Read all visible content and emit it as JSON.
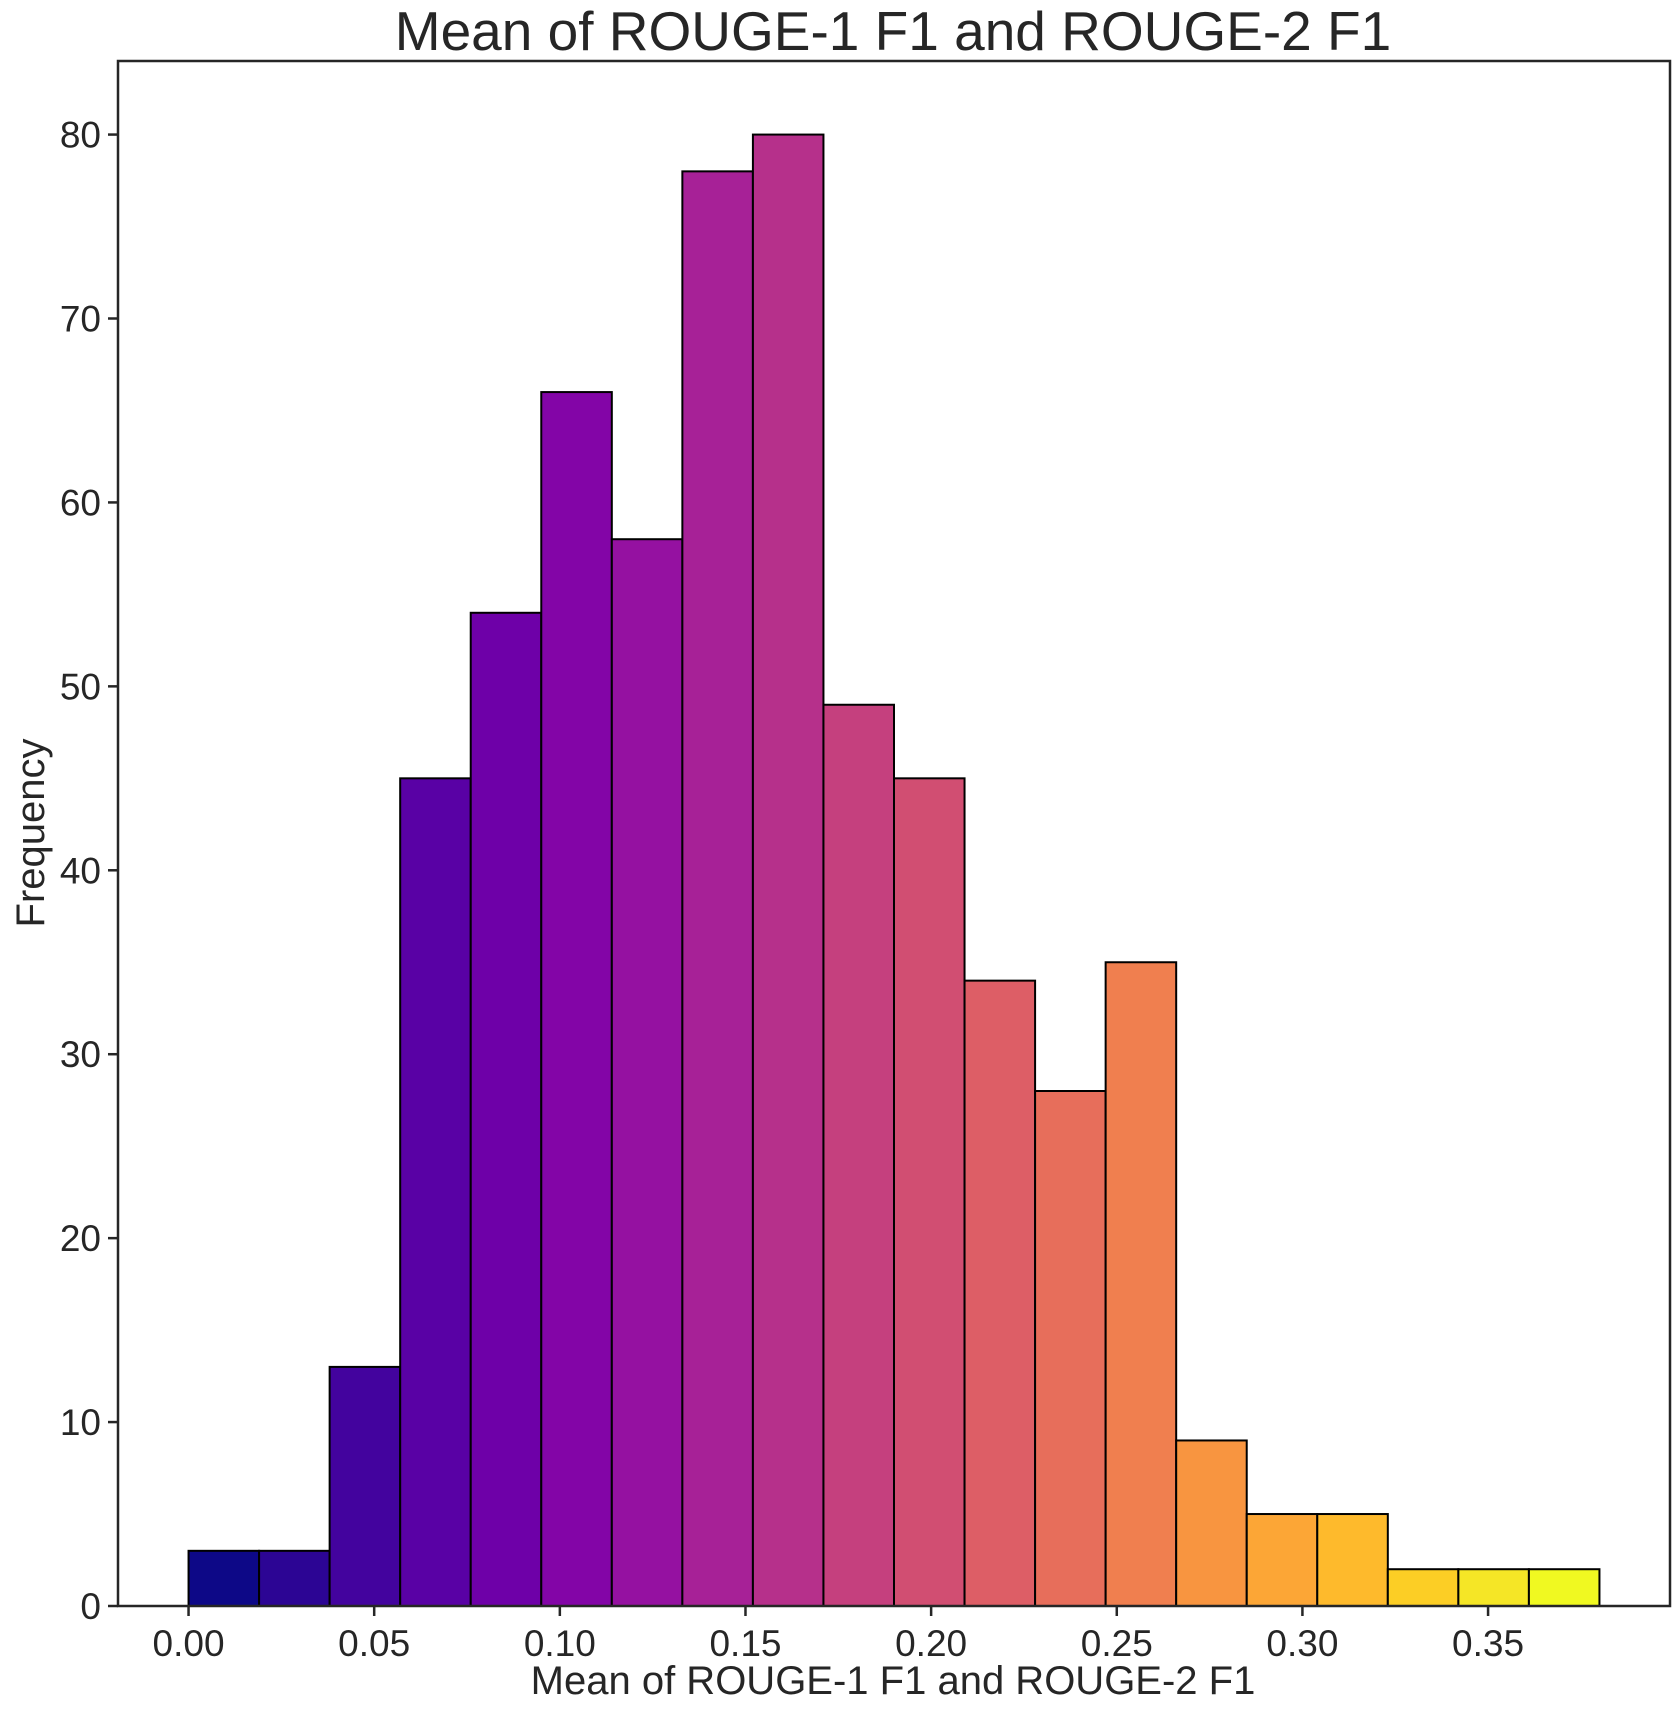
{
  "chart_data": {
    "type": "bar",
    "title": "Mean of ROUGE-1 F1 and ROUGE-2 F1",
    "xlabel": "Mean of ROUGE-1 F1 and ROUGE-2 F1",
    "ylabel": "Frequency",
    "bin_edges": [
      0.0,
      0.019,
      0.038,
      0.057,
      0.076,
      0.095,
      0.114,
      0.133,
      0.152,
      0.171,
      0.19,
      0.209,
      0.228,
      0.247,
      0.266,
      0.285,
      0.304,
      0.323,
      0.342,
      0.361,
      0.38
    ],
    "values": [
      3,
      3,
      13,
      45,
      54,
      66,
      58,
      78,
      80,
      49,
      45,
      34,
      28,
      35,
      9,
      5,
      5,
      2,
      2,
      2
    ],
    "colors": [
      "#0d0887",
      "#2c0594",
      "#43039e",
      "#5901a5",
      "#6e00a8",
      "#8305a7",
      "#9511a1",
      "#a72197",
      "#b6308b",
      "#c5407e",
      "#d14e72",
      "#dd5e66",
      "#e76e5b",
      "#f07f4f",
      "#f89540",
      "#fca636",
      "#feba2c",
      "#fcce25",
      "#f5e626",
      "#f0f921"
    ],
    "xlim": [
      -0.019,
      0.399
    ],
    "ylim": [
      0,
      84
    ],
    "xticks": [
      0.0,
      0.05,
      0.1,
      0.15,
      0.2,
      0.25,
      0.3,
      0.35
    ],
    "xtick_labels": [
      "0.00",
      "0.05",
      "0.10",
      "0.15",
      "0.20",
      "0.25",
      "0.30",
      "0.35"
    ],
    "yticks": [
      0,
      10,
      20,
      30,
      40,
      50,
      60,
      70,
      80
    ],
    "ytick_labels": [
      "0",
      "10",
      "20",
      "30",
      "40",
      "50",
      "60",
      "70",
      "80"
    ],
    "grid": false,
    "bar_edge_color": "#000000"
  }
}
